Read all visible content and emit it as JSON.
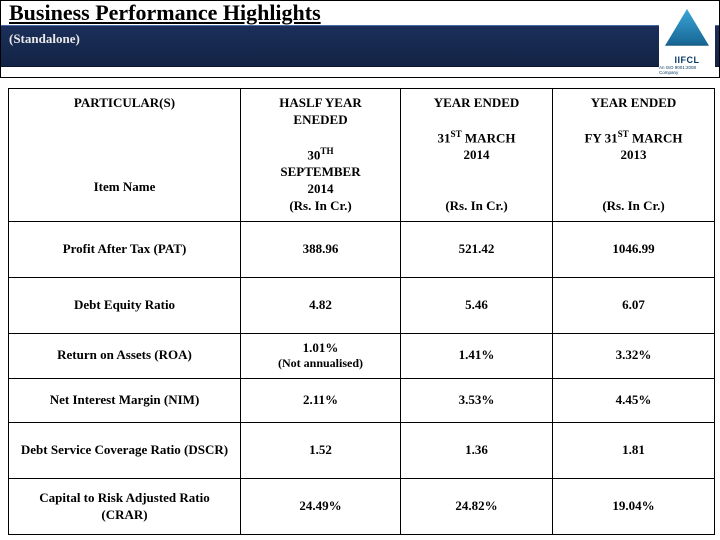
{
  "header": {
    "title": "Business Performance Highlights",
    "subtitle": "(Standalone)",
    "logo_label": "IIFCL",
    "logo_sub": "An ISO 9001:2008 Company"
  },
  "table": {
    "head": {
      "col1_top": "PARTICULAR(S)",
      "col1_bottom": "Item Name",
      "col2_l1": "HASLF YEAR",
      "col2_l2": "ENEDED",
      "col2_l3a": "30",
      "col2_l3sup": "TH",
      "col2_l4": "SEPTEMBER",
      "col2_l5": "2014",
      "col2_l6": "(Rs. In Cr.)",
      "col3_l1": "YEAR ENDED",
      "col3_l2a": "31",
      "col3_l2sup": "ST",
      "col3_l2b": " MARCH",
      "col3_l3": "2014",
      "col3_l4": "(Rs. In Cr.)",
      "col4_l1": "YEAR ENDED",
      "col4_l2a": "FY 31",
      "col4_l2sup": "ST",
      "col4_l2b": " MARCH",
      "col4_l3": "2013",
      "col4_l4": "(Rs. In Cr.)"
    },
    "rows": [
      {
        "name": "Profit After Tax (PAT)",
        "c2": "388.96",
        "c2note": "",
        "c3": "521.42",
        "c4": "1046.99"
      },
      {
        "name": "Debt Equity Ratio",
        "c2": "4.82",
        "c2note": "",
        "c3": "5.46",
        "c4": "6.07"
      },
      {
        "name": "Return on Assets (ROA)",
        "c2": "1.01%",
        "c2note": "(Not annualised)",
        "c3": "1.41%",
        "c4": "3.32%"
      },
      {
        "name": "Net Interest Margin (NIM)",
        "c2": "2.11%",
        "c2note": "",
        "c3": "3.53%",
        "c4": "4.45%"
      },
      {
        "name": "Debt Service Coverage Ratio (DSCR)",
        "c2": "1.52",
        "c2note": "",
        "c3": "1.36",
        "c4": "1.81"
      },
      {
        "name": "Capital to Risk Adjusted Ratio (CRAR)",
        "c2": "24.49%",
        "c2note": "",
        "c3": "24.82%",
        "c4": "19.04%"
      }
    ]
  },
  "style": {
    "title_color": "#000000",
    "strip_grad_top": "#1b2f5a",
    "strip_grad_bottom": "#122344",
    "border_color": "#000000",
    "font_family": "Georgia, serif",
    "title_fontsize": 22,
    "cell_fontsize": 13
  }
}
